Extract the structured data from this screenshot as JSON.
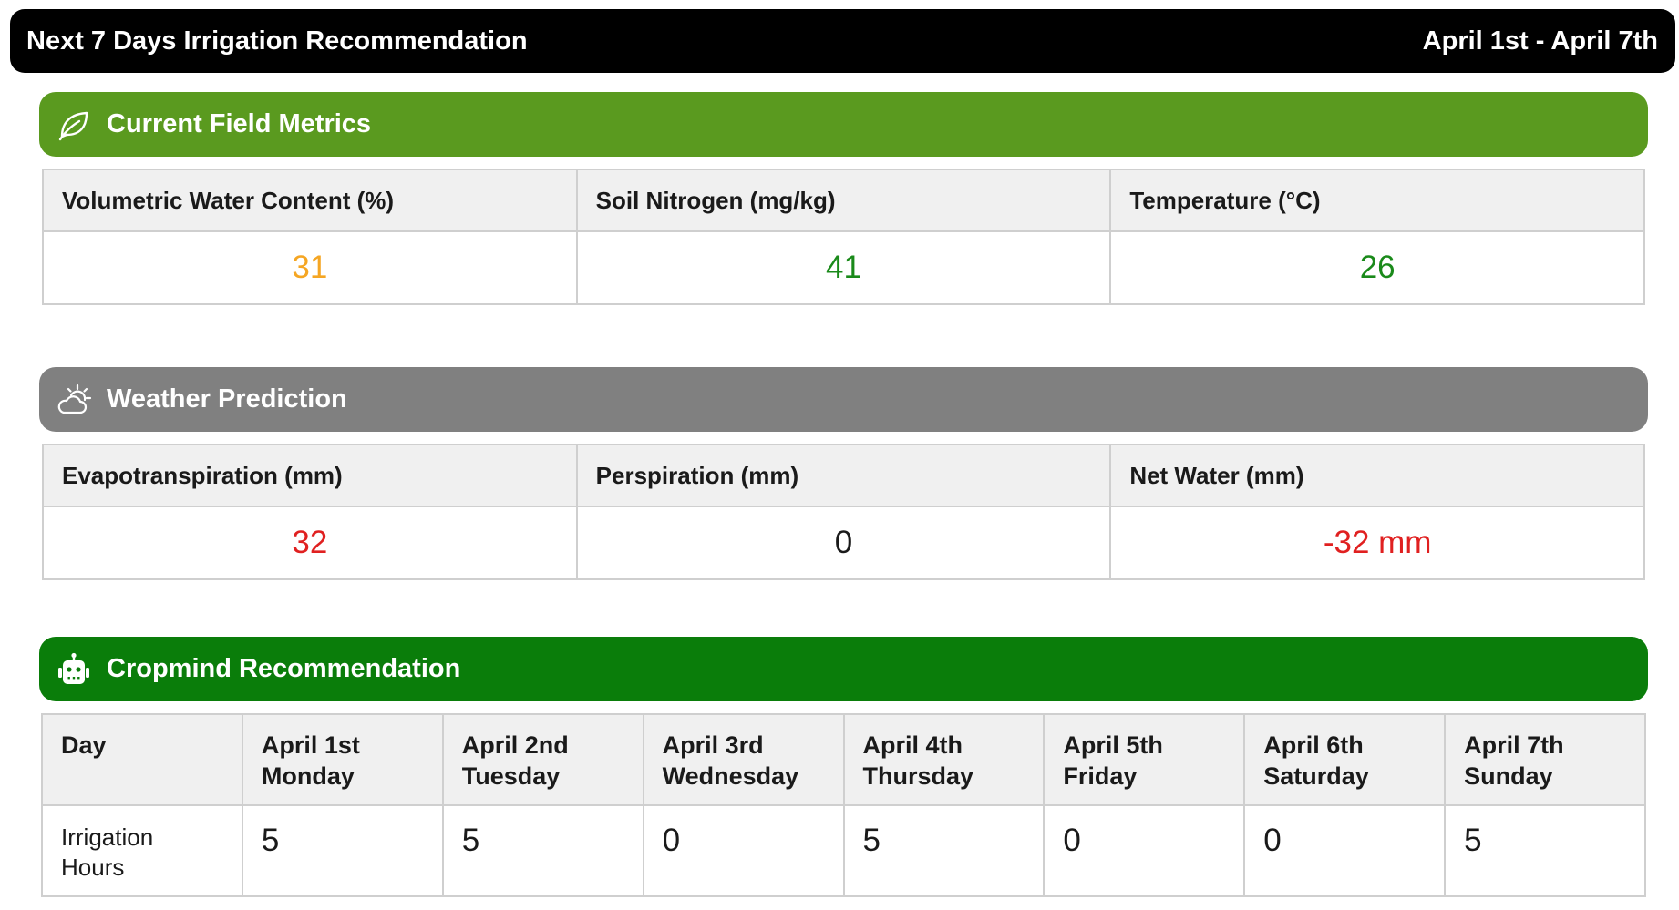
{
  "header": {
    "title": "Next 7 Days Irrigation Recommendation",
    "date_range": "April 1st - April 7th"
  },
  "field_metrics": {
    "title": "Current Field Metrics",
    "icon": "leaf-icon",
    "color": "#5a9a1f",
    "columns": [
      {
        "label": "Volumetric Water Content (%)",
        "value": "31",
        "color": "#f5a623"
      },
      {
        "label": "Soil Nitrogen (mg/kg)",
        "value": "41",
        "color": "#1a8a1a"
      },
      {
        "label": "Temperature  (°C)",
        "value": "26",
        "color": "#1a8a1a"
      }
    ]
  },
  "weather": {
    "title": "Weather Prediction",
    "icon": "partly-cloudy-icon",
    "color": "#808080",
    "columns": [
      {
        "label": "Evapotranspiration (mm)",
        "value": "32",
        "color": "#e02020"
      },
      {
        "label": "Perspiration (mm)",
        "value": "0",
        "color": "#1a1a1a"
      },
      {
        "label": "Net Water (mm)",
        "value": "-32 mm",
        "color": "#e02020"
      }
    ]
  },
  "recommendation": {
    "title": "Cropmind Recommendation",
    "icon": "robot-icon",
    "color": "#0a7d0a",
    "day_header": "Day",
    "row_label": [
      "Irrigation",
      "Hours"
    ],
    "days": [
      {
        "date": "April 1st",
        "weekday": "Monday",
        "hours": "5"
      },
      {
        "date": "April 2nd",
        "weekday": "Tuesday",
        "hours": "5"
      },
      {
        "date": "April 3rd",
        "weekday": "Wednesday",
        "hours": "0"
      },
      {
        "date": "April 4th",
        "weekday": "Thursday",
        "hours": "5"
      },
      {
        "date": "April 5th",
        "weekday": "Friday",
        "hours": "0"
      },
      {
        "date": "April 6th",
        "weekday": "Saturday",
        "hours": "0"
      },
      {
        "date": "April 7th",
        "weekday": "Sunday",
        "hours": "5"
      }
    ]
  }
}
